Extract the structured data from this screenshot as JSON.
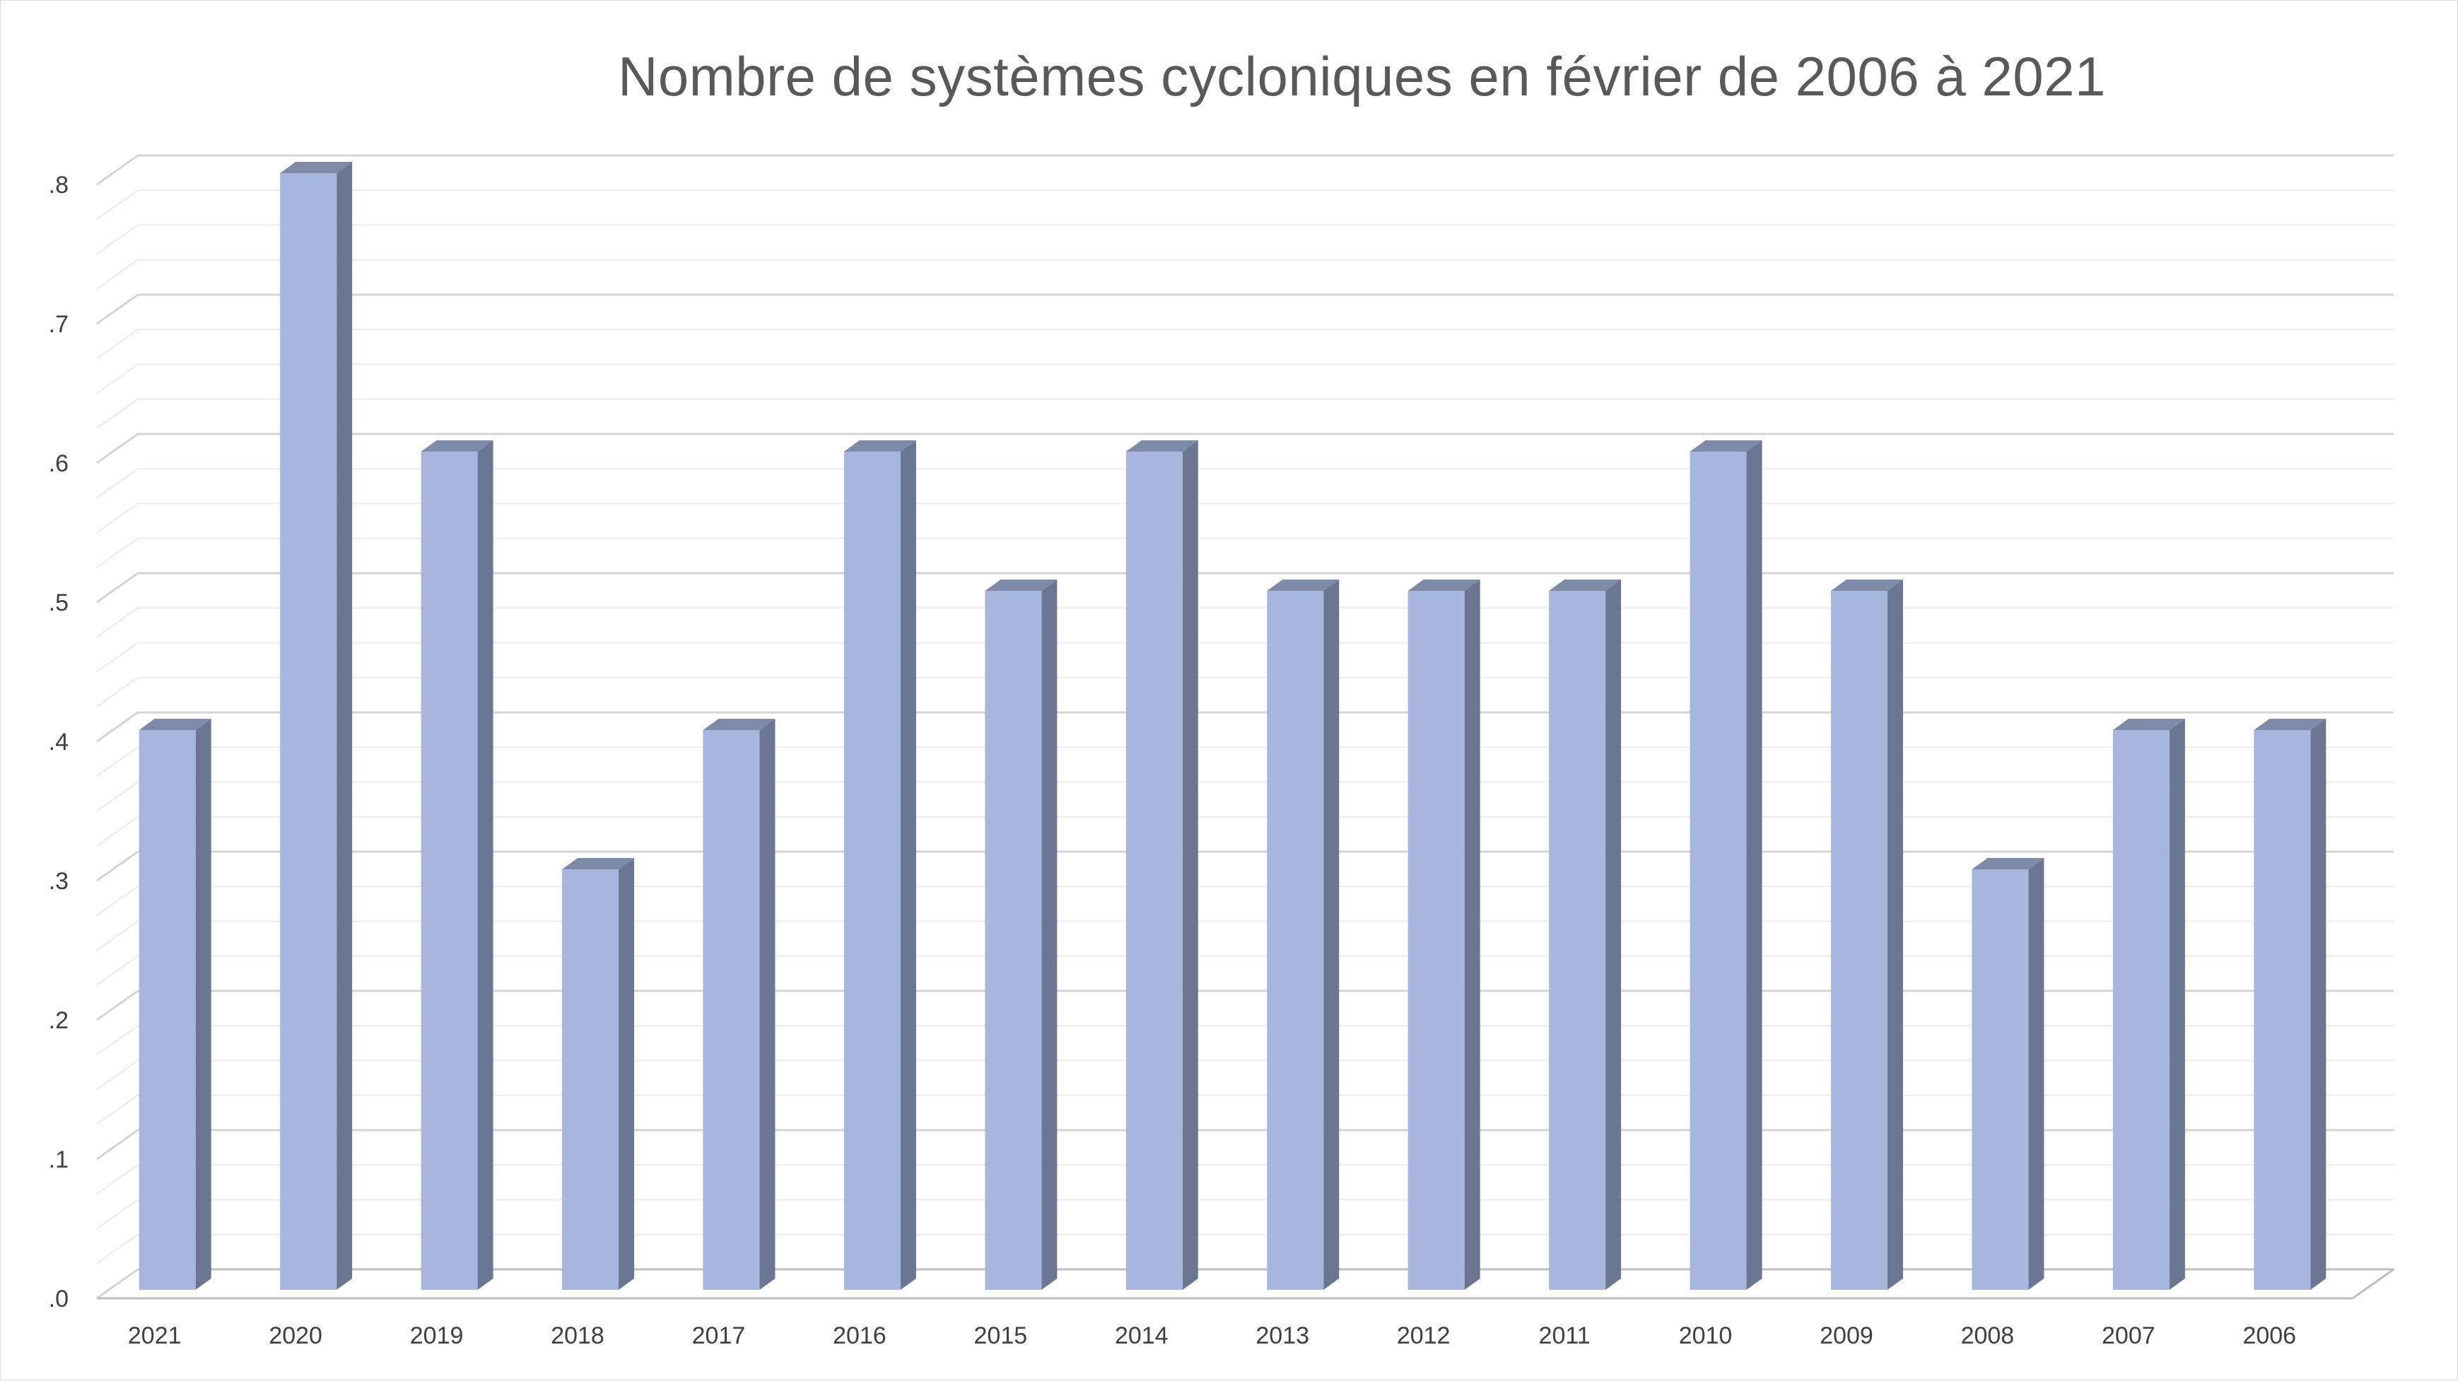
{
  "chart_data": {
    "type": "bar",
    "title": "Nombre de systèmes cycloniques en février de 2006 à 2021",
    "xlabel": "",
    "ylabel": "",
    "categories": [
      "2021",
      "2020",
      "2019",
      "2018",
      "2017",
      "2016",
      "2015",
      "2014",
      "2013",
      "2012",
      "2011",
      "2010",
      "2009",
      "2008",
      "2007",
      "2006"
    ],
    "values": [
      4,
      8,
      6,
      3,
      4,
      6,
      5,
      6,
      5,
      5,
      5,
      6,
      5,
      3,
      4,
      4
    ],
    "y_ticks": [
      ".0",
      ".1",
      ".2",
      ".3",
      ".4",
      ".5",
      ".6",
      ".7",
      ".8"
    ],
    "ylim": [
      0,
      8
    ],
    "grid": true,
    "legend": "none",
    "style": "3d-column",
    "colors": {
      "bar_front": "#a7b6dc",
      "bar_side": "#6b7792",
      "bar_top": "#7e8aa8",
      "grid_major": "#d4d4d4",
      "grid_minor": "#ececec",
      "axis": "#bfbfbf"
    }
  }
}
